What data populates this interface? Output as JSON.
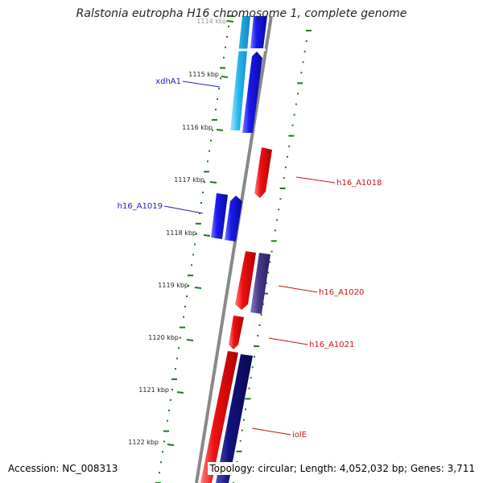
{
  "title": "Ralstonia eutropha H16 chromosome 1, complete genome",
  "footer": {
    "accession": "Accession: NC_008313",
    "topology": "Topology: circular; Length: 4,052,032 bp; Genes: 3,711"
  },
  "colors": {
    "backbone": "#808080",
    "ticks": "#1a7a1a",
    "forward_blue": "#1a1aee",
    "light_blue": "#29b6ee",
    "red": "#ee1111",
    "navy": "#121280",
    "purple": "#4a3a8a",
    "label_blue": "#2222aa",
    "label_red": "#cc1111"
  },
  "scale": {
    "ticks": [
      {
        "label": "1114 kbp",
        "value": 1114
      },
      {
        "label": "1115 kbp",
        "value": 1115
      },
      {
        "label": "1116 kbp",
        "value": 1116
      },
      {
        "label": "1117 kbp",
        "value": 1117
      },
      {
        "label": "1118 kbp",
        "value": 1118
      },
      {
        "label": "1119 kbp",
        "value": 1119
      },
      {
        "label": "1120 kbp",
        "value": 1120
      },
      {
        "label": "1121 kbp",
        "value": 1121
      },
      {
        "label": "1122 kbp",
        "value": 1122
      }
    ]
  },
  "gene_labels": [
    {
      "text": "xdhA1",
      "color": "label_blue"
    },
    {
      "text": "h16_A1019",
      "color": "label_blue"
    },
    {
      "text": "h16_A1018",
      "color": "label_red"
    },
    {
      "text": "h16_A1020",
      "color": "label_red"
    },
    {
      "text": "h16_A1021",
      "color": "label_red"
    },
    {
      "text": "iolE",
      "color": "label_red"
    }
  ]
}
